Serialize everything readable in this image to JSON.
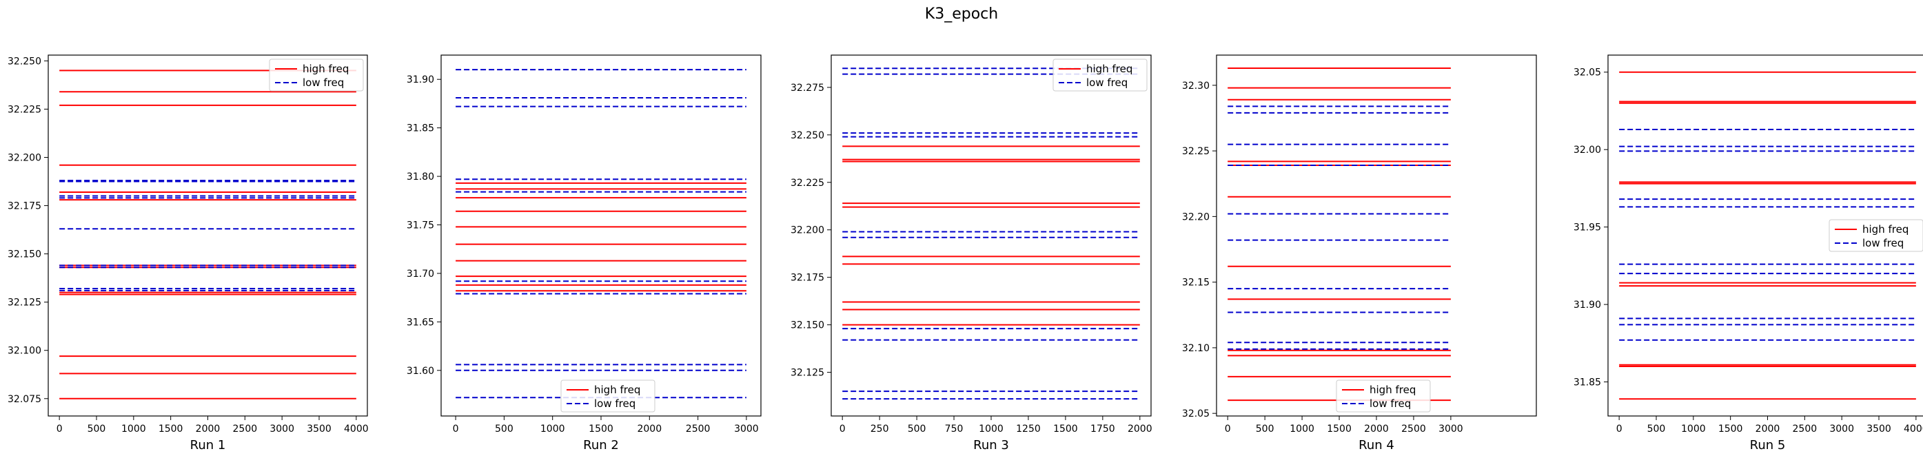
{
  "title": "K3_epoch",
  "legend_labels": {
    "high": "high freq",
    "low": "low freq"
  },
  "colors": {
    "high": "#ff0000",
    "low": "#0000cc"
  },
  "chart_data": [
    {
      "type": "line",
      "xlabel": "Run 1",
      "xlim": [
        -150,
        4150
      ],
      "ylim": [
        32.066,
        32.253
      ],
      "xticks": [
        0,
        500,
        1000,
        1500,
        2000,
        2500,
        3000,
        3500,
        4000
      ],
      "yticks": [
        32.075,
        32.1,
        32.125,
        32.15,
        32.175,
        32.2,
        32.225,
        32.25
      ],
      "ytick_decimals": 3,
      "legend": "top-right",
      "series": [
        {
          "name": "high freq",
          "x": [
            0,
            4000
          ],
          "levels": [
            32.245,
            32.234,
            32.227,
            32.196,
            32.182,
            32.178,
            32.144,
            32.143,
            32.13,
            32.129,
            32.097,
            32.088,
            32.075
          ]
        },
        {
          "name": "low freq",
          "x": [
            0,
            4000
          ],
          "levels": [
            32.188,
            32.1875,
            32.18,
            32.179,
            32.163,
            32.144,
            32.143,
            32.132,
            32.131
          ]
        }
      ]
    },
    {
      "type": "line",
      "xlabel": "Run 2",
      "xlim": [
        -150,
        3150
      ],
      "ylim": [
        31.553,
        31.925
      ],
      "xticks": [
        0,
        500,
        1000,
        1500,
        2000,
        2500,
        3000
      ],
      "yticks": [
        31.6,
        31.65,
        31.7,
        31.75,
        31.8,
        31.85,
        31.9
      ],
      "ytick_decimals": 2,
      "legend": "bottom-center",
      "series": [
        {
          "name": "high freq",
          "x": [
            0,
            3000
          ],
          "levels": [
            31.793,
            31.787,
            31.778,
            31.764,
            31.748,
            31.73,
            31.713,
            31.697,
            31.688,
            31.682
          ]
        },
        {
          "name": "low freq",
          "x": [
            0,
            3000
          ],
          "levels": [
            31.91,
            31.881,
            31.872,
            31.797,
            31.784,
            31.692,
            31.679,
            31.606,
            31.6,
            31.572
          ]
        }
      ]
    },
    {
      "type": "line",
      "xlabel": "Run 3",
      "xlim": [
        -75,
        2075
      ],
      "ylim": [
        32.102,
        32.292
      ],
      "xticks": [
        0,
        250,
        500,
        750,
        1000,
        1250,
        1500,
        1750,
        2000
      ],
      "yticks": [
        32.125,
        32.15,
        32.175,
        32.2,
        32.225,
        32.25,
        32.275
      ],
      "ytick_decimals": 3,
      "legend": "top-right",
      "series": [
        {
          "name": "high freq",
          "x": [
            0,
            2000
          ],
          "levels": [
            32.244,
            32.237,
            32.236,
            32.214,
            32.212,
            32.186,
            32.182,
            32.162,
            32.158,
            32.15
          ]
        },
        {
          "name": "low freq",
          "x": [
            0,
            2000
          ],
          "levels": [
            32.285,
            32.282,
            32.251,
            32.249,
            32.199,
            32.196,
            32.148,
            32.142,
            32.115,
            32.111
          ]
        }
      ]
    },
    {
      "type": "line",
      "xlabel": "Run 4",
      "xlim": [
        -150,
        4150
      ],
      "ylim": [
        32.048,
        32.323
      ],
      "xticks": [
        0,
        500,
        1000,
        1500,
        2000,
        2500,
        3000
      ],
      "yticks": [
        32.05,
        32.1,
        32.15,
        32.2,
        32.25,
        32.3
      ],
      "ytick_decimals": 2,
      "legend": "bottom-center",
      "series": [
        {
          "name": "high freq",
          "x": [
            0,
            3000
          ],
          "levels": [
            32.313,
            32.298,
            32.289,
            32.242,
            32.239,
            32.215,
            32.162,
            32.137,
            32.098,
            32.094,
            32.078,
            32.06
          ]
        },
        {
          "name": "low freq",
          "x": [
            0,
            3000
          ],
          "levels": [
            32.284,
            32.279,
            32.255,
            32.239,
            32.202,
            32.182,
            32.145,
            32.127,
            32.104,
            32.099
          ]
        }
      ]
    },
    {
      "type": "line",
      "xlabel": "Run 5",
      "xlim": [
        -150,
        4150
      ],
      "ylim": [
        31.828,
        32.061
      ],
      "xticks": [
        0,
        500,
        1000,
        1500,
        2000,
        2500,
        3000,
        3500,
        4000
      ],
      "yticks": [
        31.85,
        31.9,
        31.95,
        32.0,
        32.05
      ],
      "ytick_decimals": 2,
      "legend": "center-right",
      "series": [
        {
          "name": "high freq",
          "x": [
            0,
            4000
          ],
          "levels": [
            32.05,
            32.031,
            32.03,
            31.979,
            31.978,
            31.914,
            31.912,
            31.861,
            31.86,
            31.839
          ]
        },
        {
          "name": "low freq",
          "x": [
            0,
            4000
          ],
          "levels": [
            32.013,
            32.002,
            31.999,
            31.968,
            31.963,
            31.926,
            31.92,
            31.891,
            31.887,
            31.877
          ]
        }
      ]
    }
  ]
}
